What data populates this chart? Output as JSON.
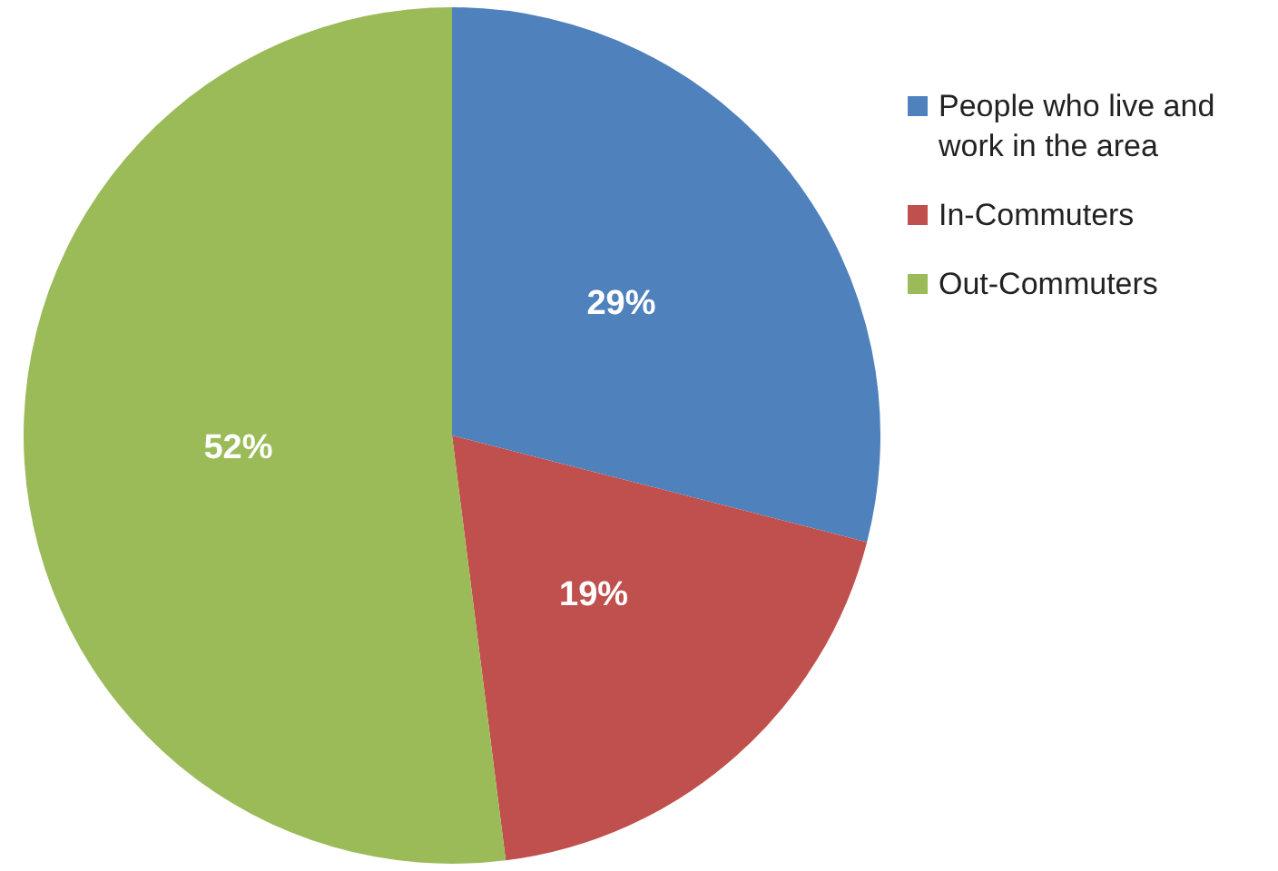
{
  "chart_data": {
    "type": "pie",
    "categories": [
      "People who live and work in the area",
      "In-Commuters",
      "Out-Commuters"
    ],
    "values": [
      29,
      19,
      52
    ],
    "colors": [
      "#4f81bd",
      "#c0504d",
      "#9bbb59"
    ],
    "legend": "right",
    "value_labels": [
      "29%",
      "19%",
      "52%"
    ]
  }
}
